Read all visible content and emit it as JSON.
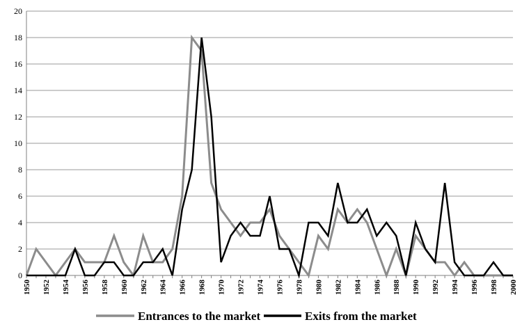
{
  "chart_data": {
    "type": "line",
    "title": "",
    "xlabel": "",
    "ylabel": "",
    "xlim": [
      1950,
      2000
    ],
    "ylim": [
      0,
      20
    ],
    "y_ticks": [
      0,
      2,
      4,
      6,
      8,
      10,
      12,
      14,
      16,
      18,
      20
    ],
    "x_tick_labels": [
      "1950",
      "1952",
      "1954",
      "1956",
      "1958",
      "1960",
      "1962",
      "1964",
      "1966",
      "1968",
      "1970",
      "1972",
      "1974",
      "1976",
      "1978",
      "1980",
      "1982",
      "1984",
      "1986",
      "1988",
      "1990",
      "1992",
      "1994",
      "1996",
      "1998",
      "2000"
    ],
    "grid": "horizontal",
    "legend_position": "bottom",
    "x": [
      1950,
      1951,
      1952,
      1953,
      1954,
      1955,
      1956,
      1957,
      1958,
      1959,
      1960,
      1961,
      1962,
      1963,
      1964,
      1965,
      1966,
      1967,
      1968,
      1969,
      1970,
      1971,
      1972,
      1973,
      1974,
      1975,
      1976,
      1977,
      1978,
      1979,
      1980,
      1981,
      1982,
      1983,
      1984,
      1985,
      1986,
      1987,
      1988,
      1989,
      1990,
      1991,
      1992,
      1993,
      1994,
      1995,
      1996,
      1997,
      1998,
      1999,
      2000
    ],
    "series": [
      {
        "name": "Entrances to the market",
        "color": "#8c8c8c",
        "values": [
          0,
          2,
          1,
          0,
          1,
          2,
          1,
          1,
          1,
          3,
          1,
          0,
          3,
          1,
          1,
          2,
          6,
          18,
          17,
          7,
          5,
          4,
          3,
          4,
          4,
          5,
          3,
          2,
          1,
          0,
          3,
          2,
          5,
          4,
          5,
          4,
          2,
          0,
          2,
          0,
          3,
          2,
          1,
          1,
          0,
          1,
          0,
          0,
          0,
          0,
          0
        ]
      },
      {
        "name": "Exits from the market",
        "color": "#000000",
        "values": [
          0,
          0,
          0,
          0,
          0,
          2,
          0,
          0,
          1,
          1,
          0,
          0,
          1,
          1,
          2,
          0,
          5,
          8,
          18,
          12,
          1,
          3,
          4,
          3,
          3,
          6,
          2,
          2,
          0,
          4,
          4,
          3,
          7,
          4,
          4,
          5,
          3,
          4,
          3,
          0,
          4,
          2,
          1,
          7,
          1,
          0,
          0,
          0,
          1,
          0,
          0
        ]
      }
    ]
  }
}
